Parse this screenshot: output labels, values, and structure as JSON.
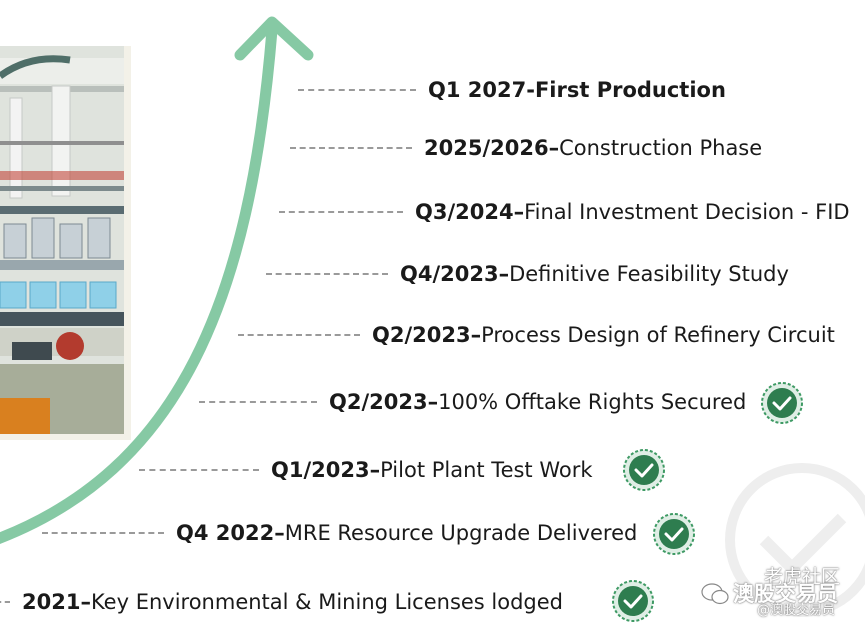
{
  "milestones": [
    {
      "date": "Q1 2027",
      "sep": " - ",
      "desc": "First Production",
      "done": false,
      "style": "top"
    },
    {
      "date": "2025/2026",
      "sep": " – ",
      "desc": "Construction Phase",
      "done": false
    },
    {
      "date": "Q3/2024",
      "sep": " – ",
      "desc": "Final Investment Decision - FID",
      "done": false
    },
    {
      "date": "Q4/2023",
      "sep": " – ",
      "desc": "Definitive Feasibility Study",
      "done": false
    },
    {
      "date": "Q2/2023",
      "sep": " – ",
      "desc": "Process Design of Refinery Circuit",
      "done": false
    },
    {
      "date": "Q2/2023",
      "sep": " – ",
      "desc": "100% Offtake Rights Secured",
      "done": true
    },
    {
      "date": "Q1/2023",
      "sep": " – ",
      "desc": "Pilot Plant Test Work",
      "done": true
    },
    {
      "date": "Q4 2022",
      "sep": " – ",
      "desc": "MRE Resource Upgrade Delivered",
      "done": true
    },
    {
      "date": "2021",
      "sep": "– ",
      "desc": "Key Environmental & Mining Licenses lodged",
      "done": true
    }
  ],
  "watermark": {
    "line1": "老虎社区",
    "line2": "澳股交易员",
    "line3": "@澳股交易员"
  },
  "colors": {
    "arrow": "#86c9a4",
    "check_fill": "#2e7d4f",
    "check_ring": "#3e9a64",
    "dash": "#9a9a9a"
  },
  "icons": {
    "check": "check-circle-icon",
    "arrow": "up-arrow-icon",
    "watermark": "wechat-icon"
  }
}
